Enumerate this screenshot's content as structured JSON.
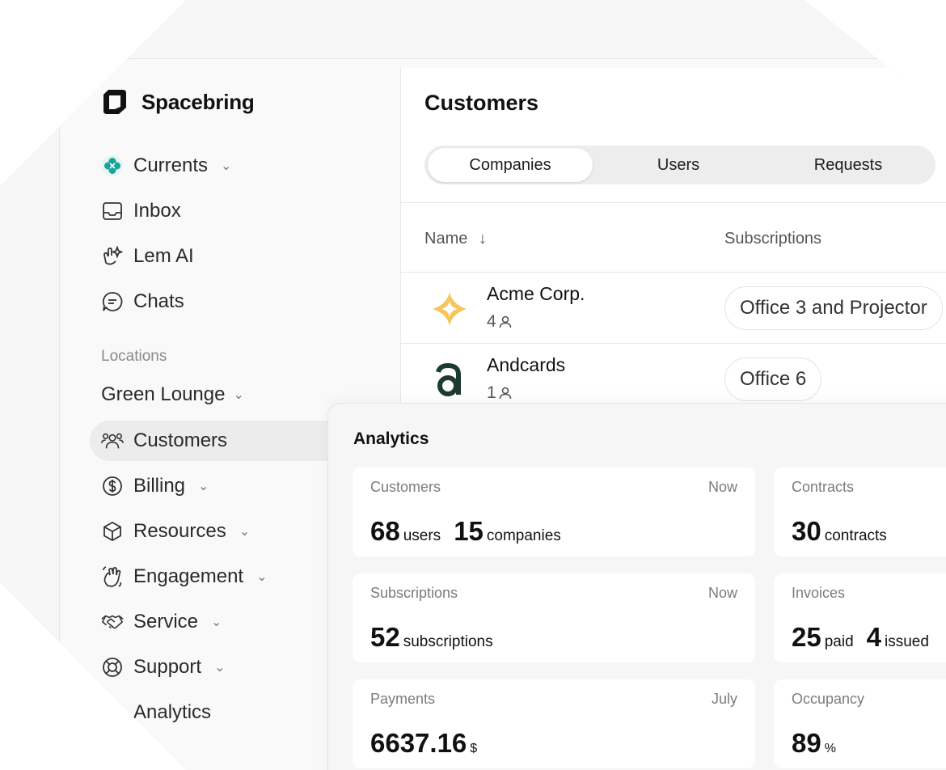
{
  "brand": {
    "name": "Spacebring"
  },
  "sidebar": {
    "top_items": [
      {
        "label": "Currents",
        "icon": "currents-icon",
        "has_chevron": true
      },
      {
        "label": "Inbox",
        "icon": "inbox-icon",
        "has_chevron": false
      },
      {
        "label": "Lem AI",
        "icon": "lem-ai-icon",
        "has_chevron": false
      },
      {
        "label": "Chats",
        "icon": "chat-icon",
        "has_chevron": false
      }
    ],
    "section_label": "Locations",
    "location": "Green Lounge",
    "items": [
      {
        "label": "Customers",
        "icon": "customers-icon",
        "has_chevron": false,
        "active": true
      },
      {
        "label": "Billing",
        "icon": "dollar-icon",
        "has_chevron": true
      },
      {
        "label": "Resources",
        "icon": "box-icon",
        "has_chevron": true
      },
      {
        "label": "Engagement",
        "icon": "wave-icon",
        "has_chevron": true
      },
      {
        "label": "Service",
        "icon": "handshake-icon",
        "has_chevron": true
      },
      {
        "label": "Support",
        "icon": "lifebuoy-icon",
        "has_chevron": true
      },
      {
        "label": "Analytics",
        "icon": "bar-chart-icon",
        "has_chevron": false
      }
    ]
  },
  "main": {
    "title": "Customers",
    "tabs": [
      {
        "label": "Companies",
        "active": true
      },
      {
        "label": "Users",
        "active": false
      },
      {
        "label": "Requests",
        "active": false
      }
    ],
    "columns": {
      "name": "Name",
      "name_sort": "↓",
      "subscriptions": "Subscriptions"
    },
    "rows": [
      {
        "name": "Acme Corp.",
        "count": "4",
        "subscription": "Office 3 and Projector",
        "logo": "acme-logo-icon"
      },
      {
        "name": "Andcards",
        "count": "1",
        "subscription": "Office 6",
        "logo": "andcards-logo-icon"
      }
    ]
  },
  "analytics": {
    "title": "Analytics",
    "cards": [
      {
        "label": "Customers",
        "period": "Now",
        "values": [
          {
            "num": "68",
            "unit": "users"
          },
          {
            "num": "15",
            "unit": "companies"
          }
        ]
      },
      {
        "label": "Contracts",
        "period": "",
        "values": [
          {
            "num": "30",
            "unit": "contracts"
          }
        ]
      },
      {
        "label": "Subscriptions",
        "period": "Now",
        "values": [
          {
            "num": "52",
            "unit": "subscriptions"
          }
        ]
      },
      {
        "label": "Invoices",
        "period": "",
        "values": [
          {
            "num": "25",
            "unit": "paid"
          },
          {
            "num": "4",
            "unit": "issued"
          }
        ]
      },
      {
        "label": "Payments",
        "period": "July",
        "values": [
          {
            "num": "6637.16",
            "unit": "$"
          }
        ]
      },
      {
        "label": "Occupancy",
        "period": "",
        "values": [
          {
            "num": "89",
            "unit": "%"
          }
        ]
      }
    ]
  },
  "colors": {
    "accent_teal": "#1aa39a",
    "acme_star": "#f7c55a",
    "andcards_dark": "#1d3b30"
  }
}
